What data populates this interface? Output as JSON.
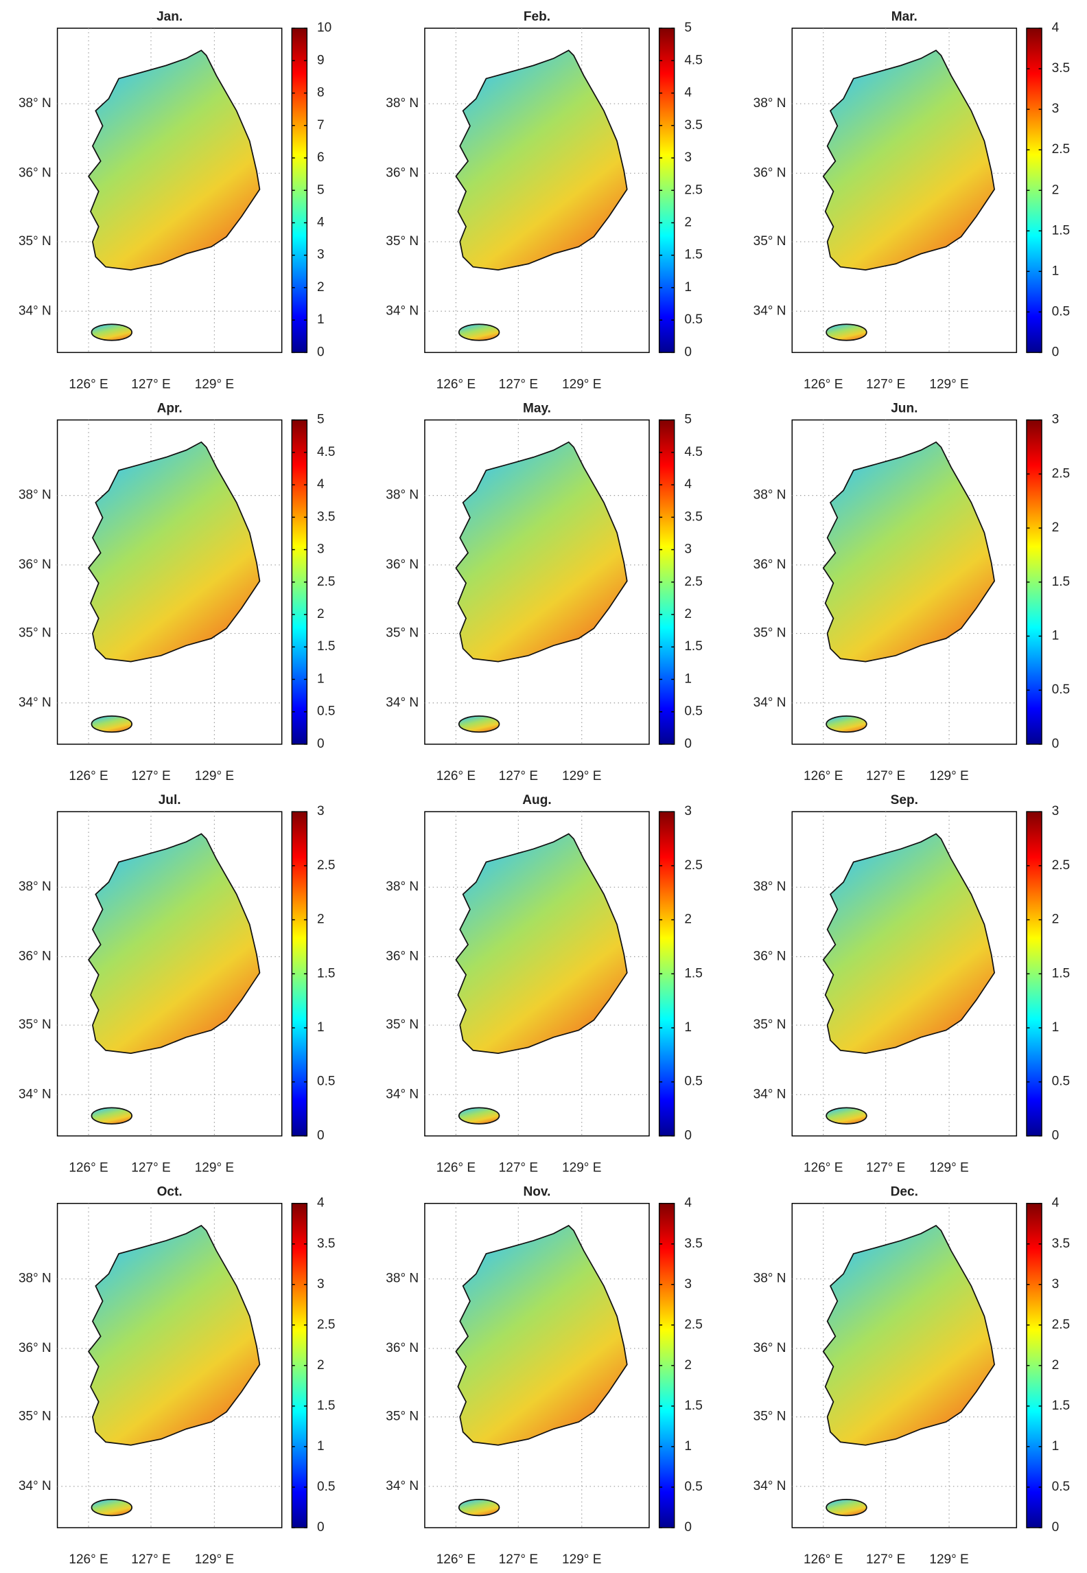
{
  "colormap": "jet",
  "lat_labels": [
    "38° N",
    "36° N",
    "35° N",
    "34° N"
  ],
  "lon_labels": [
    "126° E",
    "127° E",
    "129° E"
  ],
  "maps": [
    {
      "title": "Jan.",
      "clim": [
        0,
        10
      ],
      "cticks": [
        0,
        1,
        2,
        3,
        4,
        5,
        6,
        7,
        8,
        9,
        10
      ]
    },
    {
      "title": "Feb.",
      "clim": [
        0,
        5
      ],
      "cticks": [
        0,
        0.5,
        1,
        1.5,
        2,
        2.5,
        3,
        3.5,
        4,
        4.5,
        5
      ]
    },
    {
      "title": "Mar.",
      "clim": [
        0,
        4
      ],
      "cticks": [
        0,
        0.5,
        1,
        1.5,
        2,
        2.5,
        3,
        3.5,
        4
      ]
    },
    {
      "title": "Apr.",
      "clim": [
        0,
        5
      ],
      "cticks": [
        0,
        0.5,
        1,
        1.5,
        2,
        2.5,
        3,
        3.5,
        4,
        4.5,
        5
      ]
    },
    {
      "title": "May.",
      "clim": [
        0,
        5
      ],
      "cticks": [
        0,
        0.5,
        1,
        1.5,
        2,
        2.5,
        3,
        3.5,
        4,
        4.5,
        5
      ]
    },
    {
      "title": "Jun.",
      "clim": [
        0,
        3
      ],
      "cticks": [
        0,
        0.5,
        1,
        1.5,
        2,
        2.5,
        3
      ]
    },
    {
      "title": "Jul.",
      "clim": [
        0,
        3
      ],
      "cticks": [
        0,
        0.5,
        1,
        1.5,
        2,
        2.5,
        3
      ]
    },
    {
      "title": "Aug.",
      "clim": [
        0,
        3
      ],
      "cticks": [
        0,
        0.5,
        1,
        1.5,
        2,
        2.5,
        3
      ]
    },
    {
      "title": "Sep.",
      "clim": [
        0,
        3
      ],
      "cticks": [
        0,
        0.5,
        1,
        1.5,
        2,
        2.5,
        3
      ]
    },
    {
      "title": "Oct.",
      "clim": [
        0,
        4
      ],
      "cticks": [
        0,
        0.5,
        1,
        1.5,
        2,
        2.5,
        3,
        3.5,
        4
      ]
    },
    {
      "title": "Nov.",
      "clim": [
        0,
        4
      ],
      "cticks": [
        0,
        0.5,
        1,
        1.5,
        2,
        2.5,
        3,
        3.5,
        4
      ]
    },
    {
      "title": "Dec.",
      "clim": [
        0,
        4
      ],
      "cticks": [
        0,
        0.5,
        1,
        1.5,
        2,
        2.5,
        3,
        3.5,
        4
      ]
    }
  ]
}
